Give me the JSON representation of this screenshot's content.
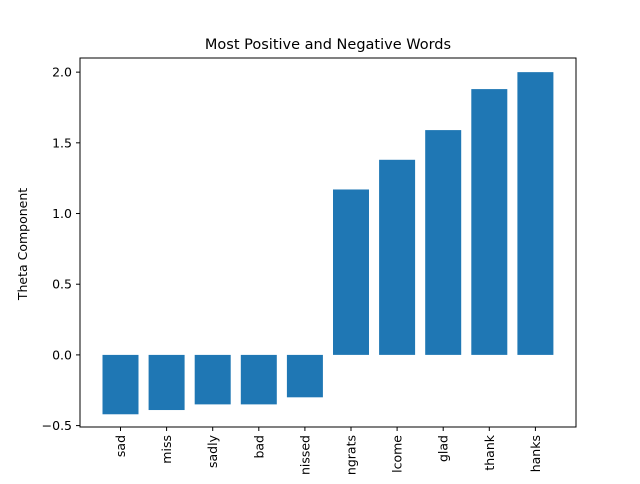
{
  "chart_data": {
    "type": "bar",
    "title": "Most Positive and Negative Words",
    "xlabel": "",
    "ylabel": "Theta Component",
    "categories": [
      "sad",
      "miss",
      "sadly",
      "bad",
      "missed",
      "congrats",
      "welcome",
      "glad",
      "thank",
      "thanks"
    ],
    "tick_labels_visible": [
      "sad",
      "miss",
      "sadly",
      "bad",
      "nissed",
      "ngrats",
      "lcome",
      "glad",
      "thank",
      "hanks"
    ],
    "values": [
      -0.42,
      -0.39,
      -0.35,
      -0.35,
      -0.3,
      1.17,
      1.38,
      1.59,
      1.88,
      2.0
    ],
    "ylim": [
      -0.51,
      2.1
    ],
    "yticks": [
      -0.5,
      0.0,
      0.5,
      1.0,
      1.5,
      2.0
    ],
    "ytick_labels": [
      "−0.5",
      "0.0",
      "0.5",
      "1.0",
      "1.5",
      "2.0"
    ],
    "grid": false,
    "bar_color": "#1f77b4"
  }
}
